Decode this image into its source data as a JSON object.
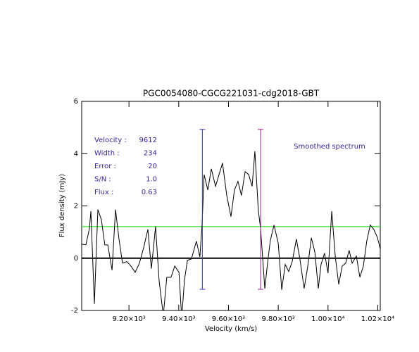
{
  "chart_data": {
    "type": "line",
    "title": "PGC0054080-CGCG221031-cdg2018-GBT",
    "xlabel": "Velocity (km/s)",
    "ylabel": "Flux density (mJy)",
    "annotation": "Smoothed spectrum",
    "stats": [
      {
        "label": "Velocity :",
        "value": 9612
      },
      {
        "label": "Width :",
        "value": 234
      },
      {
        "label": "Error :",
        "value": 20
      },
      {
        "label": "S/N :",
        "value": 1,
        "value_label": "1.0"
      },
      {
        "label": "Flux :",
        "value": 0.63
      }
    ],
    "color": "#000000",
    "x": [
      9010,
      9027,
      9041,
      9047,
      9061,
      9075,
      9089,
      9103,
      9115,
      9132,
      9146,
      9160,
      9174,
      9191,
      9208,
      9225,
      9242,
      9259,
      9276,
      9290,
      9307,
      9321,
      9338,
      9352,
      9369,
      9384,
      9401,
      9412,
      9423,
      9435,
      9451,
      9471,
      9485,
      9494,
      9502,
      9517,
      9531,
      9548,
      9562,
      9576,
      9593,
      9610,
      9624,
      9638,
      9652,
      9667,
      9681,
      9695,
      9706,
      9720,
      9729,
      9746,
      9757,
      9768,
      9783,
      9800,
      9814,
      9828,
      9842,
      9856,
      9873,
      9887,
      9904,
      9918,
      9933,
      9947,
      9961,
      9972,
      9986,
      10000,
      10015,
      10029,
      10043,
      10057,
      10071,
      10085,
      10097,
      10114,
      10128,
      10142,
      10156,
      10170,
      10184,
      10199,
      10210
    ],
    "values": [
      0.54,
      0.51,
      1.13,
      1.8,
      -1.75,
      1.86,
      1.48,
      0.51,
      0.51,
      -0.46,
      1.86,
      0.73,
      -0.19,
      -0.13,
      -0.3,
      -0.54,
      -0.19,
      0.4,
      1.1,
      -0.4,
      1.21,
      -0.84,
      -2.2,
      -0.73,
      -0.73,
      -0.3,
      -0.54,
      -2.3,
      -0.84,
      -0.08,
      -0.03,
      0.65,
      0.05,
      1.32,
      3.2,
      2.61,
      3.42,
      2.75,
      3.2,
      3.64,
      2.4,
      1.59,
      2.61,
      2.94,
      2.4,
      3.31,
      3.2,
      2.75,
      4.09,
      1.82,
      1.13,
      -1.16,
      -0.19,
      0.67,
      1.27,
      0.57,
      -1.21,
      -0.24,
      -0.51,
      -0.13,
      0.73,
      -0.03,
      -1.16,
      -0.35,
      0.78,
      0.24,
      -1.16,
      -0.24,
      0.19,
      -0.57,
      1.8,
      0.08,
      -1.0,
      -0.3,
      -0.19,
      0.3,
      -0.19,
      0.08,
      -0.73,
      -0.3,
      0.67,
      1.27,
      1.1,
      0.78,
      0.35
    ],
    "reference_line": {
      "value": 1.21,
      "color": "#00dd00"
    },
    "zero_line": true,
    "markers": [
      {
        "x": 9495,
        "ylow": -1.19,
        "yhigh": 4.93,
        "color": "#3030c0"
      },
      {
        "x": 9729,
        "ylow": -1.19,
        "yhigh": 4.93,
        "color": "#a0208f"
      }
    ],
    "xlim": [
      9010,
      10210
    ],
    "xticks": [
      {
        "value": 9200,
        "label": "9.20×10³"
      },
      {
        "value": 9400,
        "label": "9.40×10³"
      },
      {
        "value": 9600,
        "label": "9.60×10³"
      },
      {
        "value": 9800,
        "label": "9.80×10³"
      },
      {
        "value": 10000,
        "label": "1.00×10⁴"
      },
      {
        "value": 10200,
        "label": "1.02×10⁴"
      }
    ],
    "ylim": [
      -2,
      6
    ],
    "yticks": [
      -2,
      0,
      2,
      4,
      6
    ]
  }
}
